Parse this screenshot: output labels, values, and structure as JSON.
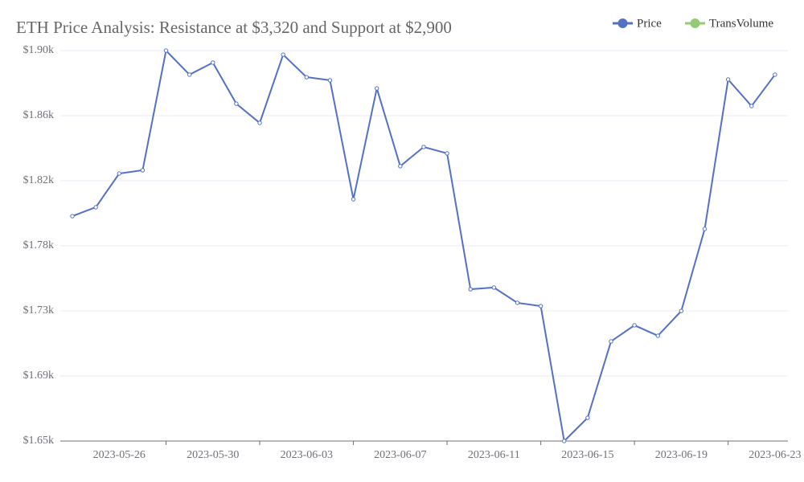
{
  "chart_data": {
    "type": "line",
    "title": "ETH Price Analysis: Resistance at $3,320 and Support at $2,900",
    "x": [
      "2023-05-24",
      "2023-05-25",
      "2023-05-26",
      "2023-05-27",
      "2023-05-28",
      "2023-05-29",
      "2023-05-30",
      "2023-05-31",
      "2023-06-01",
      "2023-06-02",
      "2023-06-03",
      "2023-06-04",
      "2023-06-05",
      "2023-06-06",
      "2023-06-07",
      "2023-06-08",
      "2023-06-09",
      "2023-06-10",
      "2023-06-11",
      "2023-06-12",
      "2023-06-13",
      "2023-06-14",
      "2023-06-15",
      "2023-06-16",
      "2023-06-17",
      "2023-06-18",
      "2023-06-19",
      "2023-06-20",
      "2023-06-21",
      "2023-06-22",
      "2023-06-23"
    ],
    "xticks": [
      "2023-05-26",
      "2023-05-30",
      "2023-06-03",
      "2023-06-07",
      "2023-06-11",
      "2023-06-15",
      "2023-06-19",
      "2023-06-23"
    ],
    "series": [
      {
        "name": "Price",
        "color": "#5470c6",
        "values": [
          1794,
          1799.7,
          1821.3,
          1823.4,
          1900,
          1884.6,
          1892.3,
          1866,
          1853.7,
          1897.4,
          1883,
          1881,
          1804.8,
          1875.8,
          1826,
          1838.3,
          1834.2,
          1747.2,
          1748.3,
          1738.5,
          1736.4,
          1650,
          1664.9,
          1713.8,
          1724.1,
          1717.4,
          1733.3,
          1785.8,
          1881.5,
          1864.5,
          1884.6
        ]
      }
    ],
    "legend": [
      {
        "name": "Price",
        "color": "#5470c6"
      },
      {
        "name": "TransVolume",
        "color": "#91cc75"
      }
    ],
    "ylim": [
      1650,
      1900
    ],
    "yticks": [
      {
        "value": 1650,
        "label": "$1.65k"
      },
      {
        "value": 1691.67,
        "label": "$1.69k"
      },
      {
        "value": 1733.33,
        "label": "$1.73k"
      },
      {
        "value": 1775,
        "label": "$1.78k"
      },
      {
        "value": 1816.67,
        "label": "$1.82k"
      },
      {
        "value": 1858.33,
        "label": "$1.86k"
      },
      {
        "value": 1900,
        "label": "$1.90k"
      }
    ],
    "grid": true
  }
}
